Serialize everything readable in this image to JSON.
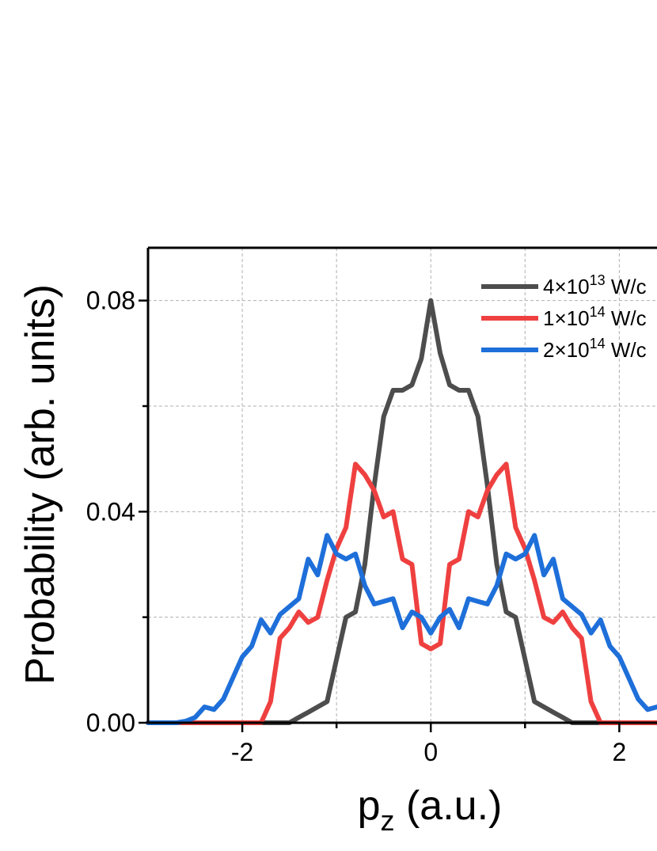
{
  "chart_data": {
    "type": "line",
    "xlabel": "p",
    "xlabel_sub": "z",
    "xlabel_suffix": " (a.u.)",
    "ylabel": "Probability (arb. units)",
    "xlim": [
      -3,
      2.4
    ],
    "ylim": [
      0,
      0.09
    ],
    "xticks": [
      -2,
      0,
      2
    ],
    "xtick_labels": [
      "-2",
      "0",
      "2"
    ],
    "yticks": [
      0,
      0.04,
      0.08
    ],
    "ytick_labels": [
      "0.00",
      "0.04",
      "0.08"
    ],
    "grid": true,
    "legend_position": "top-right",
    "series": [
      {
        "name": "4×10^13 W/c",
        "legend_base": "4×10",
        "legend_exp": "13",
        "legend_unit": " W/c",
        "color": "#4d4d4d",
        "x": [
          -3.0,
          -1.6,
          -1.5,
          -1.4,
          -1.3,
          -1.2,
          -1.1,
          -1.0,
          -0.9,
          -0.8,
          -0.7,
          -0.6,
          -0.5,
          -0.4,
          -0.3,
          -0.2,
          -0.1,
          0.0,
          0.1,
          0.2,
          0.3,
          0.4,
          0.5,
          0.6,
          0.7,
          0.8,
          0.9,
          1.0,
          1.1,
          1.2,
          1.3,
          1.4,
          1.5,
          1.6,
          2.4
        ],
        "y": [
          0.0,
          0.0,
          0.0,
          0.001,
          0.002,
          0.003,
          0.004,
          0.012,
          0.02,
          0.021,
          0.03,
          0.045,
          0.058,
          0.063,
          0.063,
          0.064,
          0.069,
          0.08,
          0.07,
          0.064,
          0.063,
          0.063,
          0.058,
          0.045,
          0.03,
          0.021,
          0.02,
          0.012,
          0.004,
          0.003,
          0.002,
          0.001,
          0.0,
          0.0,
          0.0
        ]
      },
      {
        "name": "1×10^14 W/c",
        "legend_base": "1×10",
        "legend_exp": "14",
        "legend_unit": " W/c",
        "color": "#ef4040",
        "x": [
          -3.0,
          -1.8,
          -1.7,
          -1.6,
          -1.5,
          -1.4,
          -1.3,
          -1.2,
          -1.1,
          -1.0,
          -0.9,
          -0.8,
          -0.7,
          -0.6,
          -0.5,
          -0.4,
          -0.3,
          -0.2,
          -0.1,
          0.0,
          0.1,
          0.2,
          0.3,
          0.4,
          0.5,
          0.6,
          0.7,
          0.8,
          0.9,
          1.0,
          1.1,
          1.2,
          1.3,
          1.4,
          1.5,
          1.6,
          1.7,
          1.8,
          2.4
        ],
        "y": [
          0.0,
          0.0,
          0.004,
          0.016,
          0.018,
          0.021,
          0.019,
          0.02,
          0.027,
          0.033,
          0.037,
          0.049,
          0.047,
          0.044,
          0.039,
          0.04,
          0.031,
          0.03,
          0.015,
          0.014,
          0.015,
          0.03,
          0.031,
          0.04,
          0.039,
          0.044,
          0.047,
          0.049,
          0.037,
          0.033,
          0.027,
          0.02,
          0.019,
          0.021,
          0.018,
          0.016,
          0.004,
          0.0,
          0.0
        ]
      },
      {
        "name": "2×10^14 W/c",
        "legend_base": "2×10",
        "legend_exp": "14",
        "legend_unit": " W/c",
        "color": "#1e6fd9",
        "x": [
          -3.0,
          -2.7,
          -2.6,
          -2.5,
          -2.4,
          -2.3,
          -2.2,
          -2.1,
          -2.0,
          -1.9,
          -1.8,
          -1.7,
          -1.6,
          -1.5,
          -1.4,
          -1.3,
          -1.2,
          -1.1,
          -1.0,
          -0.9,
          -0.8,
          -0.7,
          -0.6,
          -0.5,
          -0.4,
          -0.3,
          -0.2,
          -0.1,
          0.0,
          0.1,
          0.2,
          0.3,
          0.4,
          0.5,
          0.6,
          0.7,
          0.8,
          0.9,
          1.0,
          1.1,
          1.2,
          1.3,
          1.4,
          1.5,
          1.6,
          1.7,
          1.8,
          1.9,
          2.0,
          2.1,
          2.2,
          2.3,
          2.4
        ],
        "y": [
          0.0,
          0.0,
          0.0003,
          0.001,
          0.003,
          0.0025,
          0.0045,
          0.0085,
          0.0125,
          0.0145,
          0.0195,
          0.017,
          0.0205,
          0.022,
          0.0235,
          0.031,
          0.028,
          0.0355,
          0.032,
          0.031,
          0.032,
          0.026,
          0.0225,
          0.023,
          0.0235,
          0.018,
          0.021,
          0.02,
          0.017,
          0.02,
          0.0215,
          0.018,
          0.0235,
          0.023,
          0.0225,
          0.026,
          0.032,
          0.031,
          0.032,
          0.0355,
          0.028,
          0.031,
          0.0235,
          0.022,
          0.0205,
          0.017,
          0.0195,
          0.0145,
          0.0125,
          0.0085,
          0.0045,
          0.0025,
          0.003
        ]
      }
    ]
  }
}
